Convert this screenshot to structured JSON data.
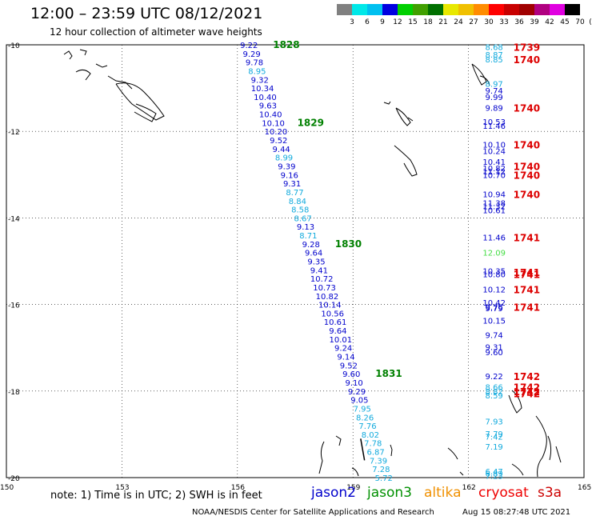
{
  "header": {
    "title": "12:00 – 23:59 UTC 08/12/2021",
    "subtitle": "12 hour collection of altimeter wave heights"
  },
  "color_scale": {
    "labels": [
      "3",
      "6",
      "9",
      "12",
      "15",
      "18",
      "21",
      "24",
      "27",
      "30",
      "33",
      "36",
      "39",
      "42",
      "45",
      "70",
      "(ft)"
    ],
    "colors": [
      "#808080",
      "#00e8e8",
      "#00c0f0",
      "#0000e0",
      "#00d000",
      "#40a000",
      "#007000",
      "#e8e800",
      "#f0c000",
      "#ff8c00",
      "#ff0000",
      "#c80000",
      "#a00000",
      "#b00080",
      "#e000e0",
      "#000000"
    ]
  },
  "footer": {
    "note": "note:  1) Time is in UTC;  2) SWH is in feet",
    "missions": [
      {
        "name": "jason2",
        "color": "#0000cc"
      },
      {
        "name": "jason3",
        "color": "#009000"
      },
      {
        "name": "altika",
        "color": "#f09000"
      },
      {
        "name": "cryosat",
        "color": "#ee0000"
      },
      {
        "name": "s3a",
        "color": "#cc0000"
      }
    ],
    "credit": "NOAA/NESDIS Center for Satellite Applications and Research",
    "timestamp": "Aug 15 08:27:48 UTC 2021"
  },
  "chart_data": {
    "type": "scatter",
    "title": "12:00 – 23:59 UTC 08/12/2021",
    "xlabel": "",
    "ylabel": "",
    "xlim": [
      150,
      165
    ],
    "ylim": [
      -20,
      -10
    ],
    "x_ticks": [
      "150",
      "153",
      "156",
      "159",
      "162",
      "165"
    ],
    "y_ticks": [
      "-10",
      "-12",
      "-14",
      "-16",
      "-18",
      "-20"
    ],
    "grid": "dashed",
    "track1": {
      "values": [
        "9.22",
        "9.29",
        "9.78",
        "8.95",
        "9.32",
        "10.34",
        "10.40",
        "9.63",
        "10.40",
        "10.10",
        "10.20",
        "9.52",
        "9.44",
        "8.99",
        "9.39",
        "9.16",
        "9.31",
        "8.77",
        "8.84",
        "8.58",
        "8.67",
        "9.13",
        "8.71",
        "9.28",
        "9.64",
        "9.35",
        "9.41",
        "10.72",
        "10.73",
        "10.82",
        "10.14",
        "10.56",
        "10.61",
        "9.64",
        "10.01",
        "9.24",
        "9.14",
        "9.52",
        "9.60",
        "9.10",
        "9.29",
        "9.05",
        "7.95",
        "8.26",
        "7.76",
        "8.02",
        "7.78",
        "6.87",
        "7.39",
        "7.28",
        "5.72"
      ],
      "lat_start": -10.0,
      "lat_end": -20.0,
      "lon_start": 156.3,
      "lon_end": 159.8,
      "time_labels": [
        {
          "time": "1828",
          "index": 0
        },
        {
          "time": "1829",
          "index": 9
        },
        {
          "time": "1830",
          "index": 23
        },
        {
          "time": "1831",
          "index": 38
        }
      ]
    },
    "track2": {
      "values": [
        {
          "v": "8.68",
          "lat": -10.05
        },
        {
          "v": "8.87",
          "lat": -10.22
        },
        {
          "v": "8.85",
          "lat": -10.33
        },
        {
          "v": "8.97",
          "lat": -10.9
        },
        {
          "v": "9.74",
          "lat": -11.05
        },
        {
          "v": "9.99",
          "lat": -11.2
        },
        {
          "v": "9.89",
          "lat": -11.45
        },
        {
          "v": "10.53",
          "lat": -11.77
        },
        {
          "v": "11.46",
          "lat": -11.87
        },
        {
          "v": "10.10",
          "lat": -12.3
        },
        {
          "v": "10.24",
          "lat": -12.45
        },
        {
          "v": "10.41",
          "lat": -12.7
        },
        {
          "v": "10.82",
          "lat": -12.85
        },
        {
          "v": "11.12",
          "lat": -12.92
        },
        {
          "v": "10.70",
          "lat": -13.0
        },
        {
          "v": "10.94",
          "lat": -13.45
        },
        {
          "v": "11.38",
          "lat": -13.65
        },
        {
          "v": "11.32",
          "lat": -13.72
        },
        {
          "v": "10.61",
          "lat": -13.82
        },
        {
          "v": "11.46",
          "lat": -14.45
        },
        {
          "v": "12.09",
          "lat": -14.8
        },
        {
          "v": "10.35",
          "lat": -15.22
        },
        {
          "v": "10.80",
          "lat": -15.3
        },
        {
          "v": "10.12",
          "lat": -15.65
        },
        {
          "v": "10.42",
          "lat": -15.95
        },
        {
          "v": "9.76",
          "lat": -16.05
        },
        {
          "v": "9.79",
          "lat": -16.08
        },
        {
          "v": "10.15",
          "lat": -16.37
        },
        {
          "v": "9.74",
          "lat": -16.7
        },
        {
          "v": "9.31",
          "lat": -16.98
        },
        {
          "v": "9.60",
          "lat": -17.1
        },
        {
          "v": "9.22",
          "lat": -17.65
        },
        {
          "v": "8.66",
          "lat": -17.9
        },
        {
          "v": "8.82",
          "lat": -18.0
        },
        {
          "v": "8.59",
          "lat": -18.1
        },
        {
          "v": "7.93",
          "lat": -18.7
        },
        {
          "v": "7.79",
          "lat": -18.98
        },
        {
          "v": "7.42",
          "lat": -19.05
        },
        {
          "v": "7.19",
          "lat": -19.28
        },
        {
          "v": "6.47",
          "lat": -19.85
        },
        {
          "v": "6.89",
          "lat": -19.9
        },
        {
          "v": "7.23",
          "lat": -19.95
        }
      ],
      "lon": 162.5,
      "time_labels": [
        {
          "time": "1739",
          "lat": -10.05
        },
        {
          "time": "1740",
          "lat": -10.33
        },
        {
          "time": "1740",
          "lat": -11.45
        },
        {
          "time": "1740",
          "lat": -12.3
        },
        {
          "time": "1740",
          "lat": -12.8
        },
        {
          "time": "1740",
          "lat": -13.0
        },
        {
          "time": "1740",
          "lat": -13.45
        },
        {
          "time": "1741",
          "lat": -14.45
        },
        {
          "time": "1741",
          "lat": -15.25
        },
        {
          "time": "1741",
          "lat": -15.3
        },
        {
          "time": "1741",
          "lat": -15.65
        },
        {
          "time": "1741",
          "lat": -16.05
        },
        {
          "time": "1742",
          "lat": -17.65
        },
        {
          "time": "1742",
          "lat": -17.9
        },
        {
          "time": "1742",
          "lat": -18.0
        },
        {
          "time": "1742",
          "lat": -18.05
        }
      ]
    }
  }
}
